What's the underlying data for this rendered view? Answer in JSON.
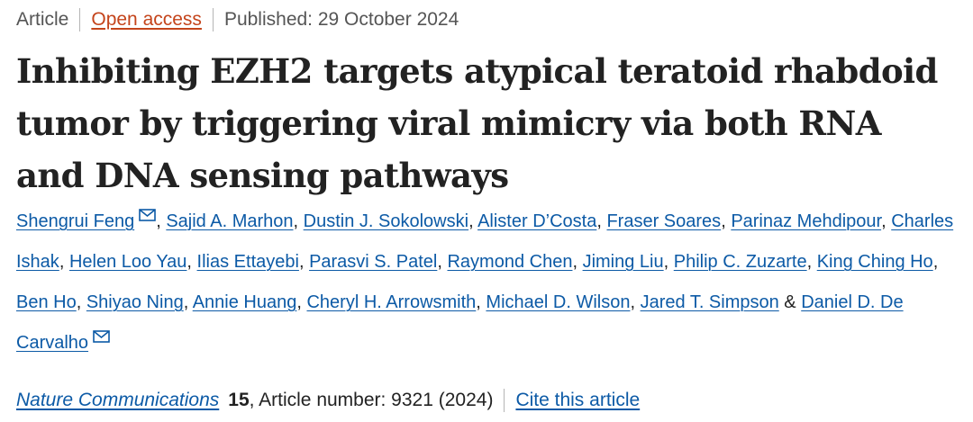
{
  "meta": {
    "type": "Article",
    "access": "Open access",
    "published": "Published: 29 October 2024"
  },
  "title": "Inhibiting EZH2 targets atypical teratoid rhabdoid tumor by triggering viral mimicry via both RNA and DNA sensing pathways",
  "authors": [
    {
      "name": "Shengrui Feng",
      "corresponding": true
    },
    {
      "name": "Sajid A. Marhon"
    },
    {
      "name": "Dustin J. Sokolowski"
    },
    {
      "name": "Alister D’Costa"
    },
    {
      "name": "Fraser Soares"
    },
    {
      "name": "Parinaz Mehdipour"
    },
    {
      "name": "Charles Ishak"
    },
    {
      "name": "Helen Loo Yau"
    },
    {
      "name": "Ilias Ettayebi"
    },
    {
      "name": "Parasvi S. Patel"
    },
    {
      "name": "Raymond Chen"
    },
    {
      "name": "Jiming Liu"
    },
    {
      "name": "Philip C. Zuzarte"
    },
    {
      "name": "King Ching Ho"
    },
    {
      "name": "Ben Ho"
    },
    {
      "name": "Shiyao Ning"
    },
    {
      "name": "Annie Huang"
    },
    {
      "name": "Cheryl H. Arrowsmith"
    },
    {
      "name": "Michael D. Wilson"
    },
    {
      "name": "Jared T. Simpson"
    },
    {
      "name": "Daniel D. De Carvalho",
      "corresponding": true
    }
  ],
  "separators": {
    "comma": ", ",
    "last": " & "
  },
  "journal": {
    "name": "Nature Communications",
    "volume": "15",
    "article_number": ", Article number: 9321 (2024)",
    "cite_label": "Cite this article"
  },
  "icons": {
    "corresponding": "mail-icon"
  },
  "colors": {
    "link": "#0c5aa6",
    "open_access": "#c4441b",
    "meta_text": "#555555",
    "body_text": "#222222"
  }
}
